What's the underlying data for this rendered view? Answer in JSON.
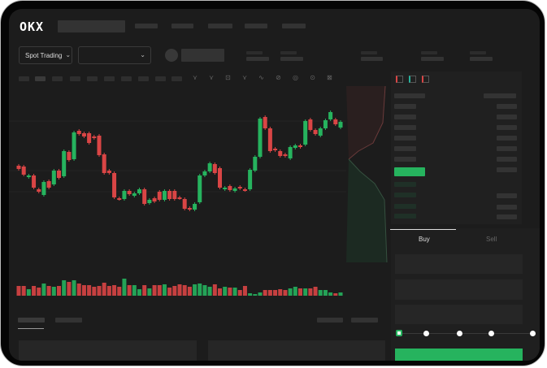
{
  "brand": {
    "logo": "OKX"
  },
  "trade_bar": {
    "mode_label": "Spot Trading",
    "pair_select_value": ""
  },
  "order_form": {
    "tabs": [
      {
        "label": "Buy",
        "active": true
      },
      {
        "label": "Sell",
        "active": false
      }
    ],
    "slider_percent": 0,
    "slider_stops": [
      0,
      25,
      50,
      75,
      100
    ]
  },
  "colors": {
    "up": "#26b35e",
    "down": "#d94545",
    "background": "#1c1c1c",
    "accent": "#26b35e"
  },
  "icons": [
    "chevron-down-icon",
    "order-book-both-icon",
    "order-book-bids-icon",
    "order-book-asks-icon",
    "drawing-tool-icons"
  ],
  "chart_data": {
    "type": "candlestick",
    "ylim": [
      0,
      140
    ],
    "candles": [
      {
        "o": 62,
        "c": 58
      },
      {
        "o": 61,
        "c": 51
      },
      {
        "o": 48,
        "c": 50
      },
      {
        "o": 50,
        "c": 35
      },
      {
        "o": 33,
        "c": 30
      },
      {
        "o": 26,
        "c": 42
      },
      {
        "o": 43,
        "c": 35
      },
      {
        "o": 39,
        "c": 56
      },
      {
        "o": 56,
        "c": 47
      },
      {
        "o": 49,
        "c": 80
      },
      {
        "o": 79,
        "c": 69
      },
      {
        "o": 70,
        "c": 103
      },
      {
        "o": 105,
        "c": 101
      },
      {
        "o": 102,
        "c": 98
      },
      {
        "o": 102,
        "c": 90
      },
      {
        "o": 98,
        "c": 96
      },
      {
        "o": 99,
        "c": 75
      },
      {
        "o": 76,
        "c": 53
      },
      {
        "o": 56,
        "c": 53
      },
      {
        "o": 53,
        "c": 23
      },
      {
        "o": 22,
        "c": 21
      },
      {
        "o": 21,
        "c": 31
      },
      {
        "o": 31,
        "c": 27
      },
      {
        "o": 25,
        "c": 28
      },
      {
        "o": 28,
        "c": 33
      },
      {
        "o": 33,
        "c": 15
      },
      {
        "o": 16,
        "c": 20
      },
      {
        "o": 22,
        "c": 18
      },
      {
        "o": 30,
        "c": 20
      },
      {
        "o": 20,
        "c": 31
      },
      {
        "o": 31,
        "c": 21
      },
      {
        "o": 31,
        "c": 21
      },
      {
        "o": 23,
        "c": 22
      },
      {
        "o": 21,
        "c": 9
      },
      {
        "o": 10,
        "c": 8
      },
      {
        "o": 8,
        "c": 15
      },
      {
        "o": 17,
        "c": 50
      },
      {
        "o": 50,
        "c": 55
      },
      {
        "o": 55,
        "c": 65
      },
      {
        "o": 64,
        "c": 53
      },
      {
        "o": 59,
        "c": 35
      },
      {
        "o": 33,
        "c": 35
      },
      {
        "o": 37,
        "c": 32
      },
      {
        "o": 31,
        "c": 34
      },
      {
        "o": 36,
        "c": 34
      },
      {
        "o": 33,
        "c": 32
      },
      {
        "o": 33,
        "c": 57
      },
      {
        "o": 56,
        "c": 73
      },
      {
        "o": 73,
        "c": 120
      },
      {
        "o": 122,
        "c": 108
      },
      {
        "o": 108,
        "c": 80
      },
      {
        "o": 83,
        "c": 81
      },
      {
        "o": 80,
        "c": 74
      },
      {
        "o": 76,
        "c": 74
      },
      {
        "o": 71,
        "c": 85
      },
      {
        "o": 84,
        "c": 87
      },
      {
        "o": 87,
        "c": 85
      },
      {
        "o": 88,
        "c": 117
      },
      {
        "o": 119,
        "c": 106
      },
      {
        "o": 106,
        "c": 101
      },
      {
        "o": 99,
        "c": 108
      },
      {
        "o": 108,
        "c": 118
      },
      {
        "o": 119,
        "c": 128
      },
      {
        "o": 119,
        "c": 113
      },
      {
        "o": 109,
        "c": 116
      }
    ],
    "volumes": [
      12,
      12,
      8,
      12,
      10,
      15,
      12,
      11,
      12,
      19,
      17,
      19,
      15,
      13,
      13,
      11,
      12,
      16,
      12,
      13,
      11,
      21,
      13,
      13,
      8,
      13,
      9,
      13,
      13,
      14,
      10,
      12,
      14,
      13,
      11,
      14,
      15,
      13,
      11,
      14,
      9,
      11,
      10,
      10,
      7,
      12,
      3,
      2,
      4,
      7,
      7,
      7,
      8,
      7,
      9,
      11,
      9,
      9,
      9,
      11,
      7,
      7,
      4,
      3,
      4
    ]
  }
}
